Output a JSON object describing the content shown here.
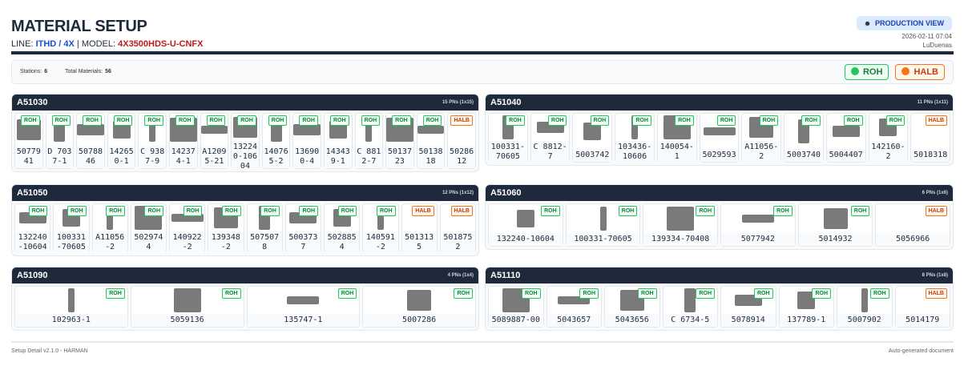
{
  "header": {
    "title": "MATERIAL SETUP",
    "line_label": "LINE:",
    "line": "ITHD / 4X",
    "model_label": "MODEL:",
    "model": "4X3500HDS-U-CNFX",
    "view_badge": "PRODUCTION VIEW",
    "datetime": "2026-02-11 07:04",
    "user": "LuDuenas"
  },
  "stats": {
    "stations_label": "Stations:",
    "stations": "6",
    "materials_label": "Total Materials:",
    "materials": "56"
  },
  "legend": {
    "roh": "ROH",
    "halb": "HALB",
    "roh_color": "#22c55e",
    "halb_color": "#f97316"
  },
  "stations": [
    {
      "name": "A51030",
      "count": "15 PNs (1x15)",
      "parts": [
        {
          "pn": "5077941",
          "type": "ROH"
        },
        {
          "pn": "D 7037-1",
          "type": "ROH"
        },
        {
          "pn": "5078846",
          "type": "ROH"
        },
        {
          "pn": "142650-1",
          "type": "ROH"
        },
        {
          "pn": "C 9387-9",
          "type": "ROH"
        },
        {
          "pn": "142374-1",
          "type": "ROH"
        },
        {
          "pn": "A12095-21",
          "type": "ROH"
        },
        {
          "pn": "132240-10604",
          "type": "ROH"
        },
        {
          "pn": "140765-2",
          "type": "ROH"
        },
        {
          "pn": "136900-4",
          "type": "ROH"
        },
        {
          "pn": "143439-1",
          "type": "ROH"
        },
        {
          "pn": "C 8812-7",
          "type": "ROH"
        },
        {
          "pn": "5013723",
          "type": "ROH"
        },
        {
          "pn": "5013818",
          "type": "ROH"
        },
        {
          "pn": "5028612",
          "type": "HALB"
        }
      ]
    },
    {
      "name": "A51040",
      "count": "11 PNs (1x11)",
      "parts": [
        {
          "pn": "100331-70605",
          "type": "ROH"
        },
        {
          "pn": "C 8812-7",
          "type": "ROH"
        },
        {
          "pn": "5003742",
          "type": "ROH"
        },
        {
          "pn": "103436-10606",
          "type": "ROH"
        },
        {
          "pn": "140054-1",
          "type": "ROH"
        },
        {
          "pn": "5029593",
          "type": "ROH"
        },
        {
          "pn": "A11056-2",
          "type": "ROH"
        },
        {
          "pn": "5003740",
          "type": "ROH"
        },
        {
          "pn": "5004407",
          "type": "ROH"
        },
        {
          "pn": "142160-2",
          "type": "ROH"
        },
        {
          "pn": "5018318",
          "type": "HALB"
        }
      ]
    },
    {
      "name": "A51050",
      "count": "12 PNs (1x12)",
      "parts": [
        {
          "pn": "132240-10604",
          "type": "ROH"
        },
        {
          "pn": "100331-70605",
          "type": "ROH"
        },
        {
          "pn": "A11056-2",
          "type": "ROH"
        },
        {
          "pn": "5029744",
          "type": "ROH"
        },
        {
          "pn": "140922-2",
          "type": "ROH"
        },
        {
          "pn": "139348-2",
          "type": "ROH"
        },
        {
          "pn": "5075078",
          "type": "ROH"
        },
        {
          "pn": "5003737",
          "type": "ROH"
        },
        {
          "pn": "5028854",
          "type": "ROH"
        },
        {
          "pn": "140591-2",
          "type": "ROH"
        },
        {
          "pn": "5013135",
          "type": "HALB"
        },
        {
          "pn": "5018752",
          "type": "HALB"
        }
      ]
    },
    {
      "name": "A51060",
      "count": "6 PNs (1x6)",
      "parts": [
        {
          "pn": "132240-10604",
          "type": "ROH"
        },
        {
          "pn": "100331-70605",
          "type": "ROH"
        },
        {
          "pn": "139334-70408",
          "type": "ROH"
        },
        {
          "pn": "5077942",
          "type": "ROH"
        },
        {
          "pn": "5014932",
          "type": "ROH"
        },
        {
          "pn": "5056966",
          "type": "HALB"
        }
      ]
    },
    {
      "name": "A51090",
      "count": "4 PNs (1x4)",
      "parts": [
        {
          "pn": "102963-1",
          "type": "ROH"
        },
        {
          "pn": "5059136",
          "type": "ROH"
        },
        {
          "pn": "135747-1",
          "type": "ROH"
        },
        {
          "pn": "5007286",
          "type": "ROH"
        }
      ]
    },
    {
      "name": "A51110",
      "count": "8 PNs (1x8)",
      "parts": [
        {
          "pn": "5089887-00",
          "type": "ROH"
        },
        {
          "pn": "5043657",
          "type": "ROH"
        },
        {
          "pn": "5043656",
          "type": "ROH"
        },
        {
          "pn": "C 6734-5",
          "type": "ROH"
        },
        {
          "pn": "5078914",
          "type": "ROH"
        },
        {
          "pn": "137789-1",
          "type": "ROH"
        },
        {
          "pn": "5007902",
          "type": "ROH"
        },
        {
          "pn": "5014179",
          "type": "HALB"
        }
      ]
    }
  ],
  "footer": {
    "left": "Setup Detail v2.1.0 - HARMAN",
    "right": "Auto-generated document"
  }
}
